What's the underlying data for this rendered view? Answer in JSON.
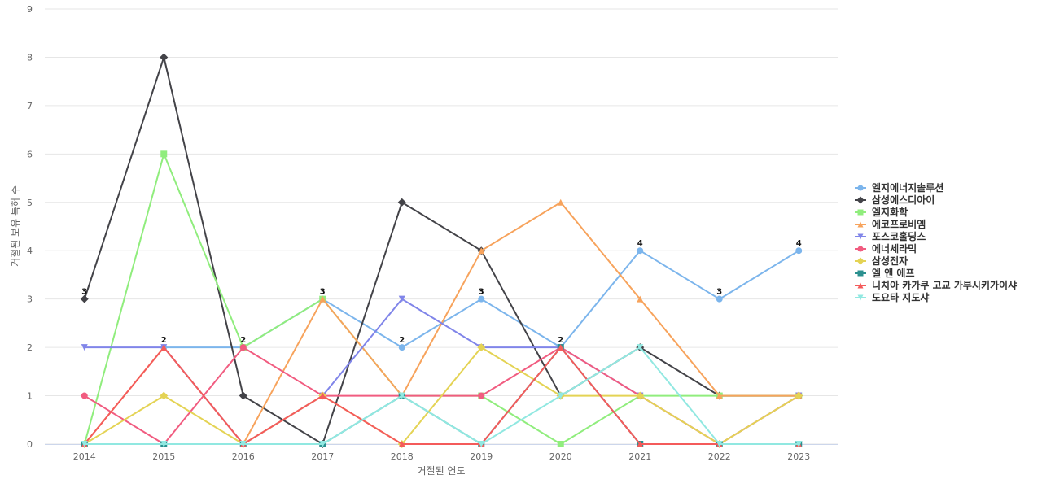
{
  "chart_data": {
    "type": "line",
    "title": "",
    "xlabel": "거절된 연도",
    "ylabel": "거절된 보유 특허 수",
    "x": [
      "2014",
      "2015",
      "2016",
      "2017",
      "2018",
      "2019",
      "2020",
      "2021",
      "2022",
      "2023"
    ],
    "ylim": [
      0,
      9
    ],
    "yticks": [
      0,
      1,
      2,
      3,
      4,
      5,
      6,
      7,
      8,
      9
    ],
    "grid": true,
    "legend_position": "right",
    "data_labels_series": "엘지에너지솔루션",
    "series": [
      {
        "name": "엘지에너지솔루션",
        "color": "#7cb5ec",
        "marker": "circle",
        "values": [
          null,
          2,
          2,
          3,
          2,
          3,
          2,
          4,
          3,
          4
        ]
      },
      {
        "name": "삼성에스디아이",
        "color": "#434348",
        "marker": "diamond",
        "values": [
          3,
          8,
          1,
          0,
          5,
          4,
          1,
          2,
          1,
          1
        ]
      },
      {
        "name": "엘지화학",
        "color": "#90ed7d",
        "marker": "square",
        "values": [
          0,
          6,
          2,
          3,
          1,
          1,
          0,
          1,
          1,
          1
        ]
      },
      {
        "name": "에코프로비엠",
        "color": "#f7a35c",
        "marker": "triangle",
        "values": [
          0,
          2,
          0,
          3,
          1,
          4,
          5,
          3,
          1,
          1
        ]
      },
      {
        "name": "포스코홀딩스",
        "color": "#8085e9",
        "marker": "triangle-down",
        "values": [
          2,
          2,
          0,
          1,
          3,
          2,
          2,
          1,
          0,
          1
        ]
      },
      {
        "name": "에너세라믹",
        "color": "#f15c80",
        "marker": "circle",
        "values": [
          1,
          0,
          2,
          1,
          1,
          1,
          2,
          1,
          0,
          1
        ]
      },
      {
        "name": "삼성전자",
        "color": "#e4d354",
        "marker": "diamond",
        "values": [
          0,
          1,
          0,
          1,
          0,
          2,
          1,
          1,
          0,
          1
        ]
      },
      {
        "name": "엘 앤 에프",
        "color": "#2b908f",
        "marker": "square",
        "values": [
          0,
          0,
          0,
          0,
          1,
          0,
          2,
          0,
          0,
          0
        ]
      },
      {
        "name": "니치아 카가쿠 고교 가부시키가이샤",
        "color": "#f45b5b",
        "marker": "triangle",
        "values": [
          0,
          2,
          0,
          1,
          0,
          0,
          2,
          0,
          0,
          0
        ]
      },
      {
        "name": "도요타 지도샤",
        "color": "#91e8e1",
        "marker": "triangle-down",
        "values": [
          0,
          0,
          0,
          0,
          1,
          0,
          1,
          2,
          0,
          0
        ]
      }
    ]
  }
}
